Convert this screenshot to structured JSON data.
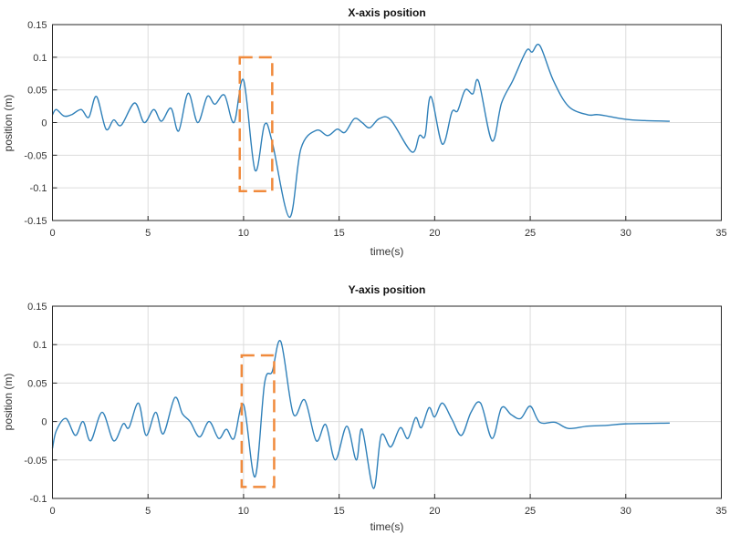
{
  "colors": {
    "line": "#2f80b9",
    "highlight": "#f08a3c",
    "grid": "#dcdcdc",
    "axis": "#262626"
  },
  "chart_data": [
    {
      "type": "line",
      "title": "X-axis position",
      "xlabel": "time(s)",
      "ylabel": "position (m)",
      "xlim": [
        0,
        35
      ],
      "ylim": [
        -0.15,
        0.15
      ],
      "xticks": [
        "0",
        "5",
        "10",
        "15",
        "20",
        "25",
        "30",
        "35"
      ],
      "yticks": [
        "-0.15",
        "-0.1",
        "-0.05",
        "0",
        "0.05",
        "0.1",
        "0.15"
      ],
      "grid": true,
      "highlight_box": {
        "x": [
          9.8,
          11.5
        ],
        "y": [
          -0.105,
          0.1
        ],
        "style": "dashed"
      },
      "x": [
        0,
        0.2,
        0.6,
        1,
        1.5,
        1.9,
        2.3,
        2.8,
        3.2,
        3.6,
        4.3,
        4.8,
        5.3,
        5.7,
        6.2,
        6.6,
        7.1,
        7.6,
        8.1,
        8.5,
        9,
        9.5,
        10,
        10.6,
        11.1,
        11.5,
        12.4,
        13,
        13.8,
        14.4,
        14.9,
        15.3,
        15.8,
        16.2,
        16.6,
        17.1,
        17.7,
        18.8,
        19.2,
        19.5,
        19.8,
        20.4,
        20.9,
        21.2,
        21.6,
        22,
        22.3,
        23,
        23.5,
        24.1,
        24.8,
        25.1,
        25.5,
        26.2,
        27,
        28,
        28.6,
        30,
        31,
        32.3
      ],
      "y": [
        0.012,
        0.02,
        0.01,
        0.012,
        0.02,
        0.008,
        0.04,
        -0.01,
        0.004,
        -0.004,
        0.03,
        0.0,
        0.02,
        0.002,
        0.022,
        -0.013,
        0.045,
        0.0,
        0.04,
        0.028,
        0.042,
        0.0,
        0.065,
        -0.073,
        -0.003,
        -0.03,
        -0.145,
        -0.04,
        -0.012,
        -0.02,
        -0.01,
        -0.015,
        0.006,
        0.0,
        -0.008,
        0.006,
        0.004,
        -0.045,
        -0.02,
        -0.02,
        0.04,
        -0.033,
        0.016,
        0.018,
        0.05,
        0.044,
        0.063,
        -0.028,
        0.03,
        0.065,
        0.11,
        0.108,
        0.118,
        0.065,
        0.025,
        0.012,
        0.012,
        0.005,
        0.003,
        0.002
      ]
    },
    {
      "type": "line",
      "title": "Y-axis position",
      "xlabel": "time(s)",
      "ylabel": "position (m)",
      "xlim": [
        0,
        35
      ],
      "ylim": [
        -0.1,
        0.15
      ],
      "xticks": [
        "0",
        "5",
        "10",
        "15",
        "20",
        "25",
        "30",
        "35"
      ],
      "yticks": [
        "-0.1",
        "-0.05",
        "0",
        "0.05",
        "0.1",
        "0.15"
      ],
      "grid": true,
      "highlight_box": {
        "x": [
          9.9,
          11.6
        ],
        "y": [
          -0.085,
          0.086
        ],
        "style": "dashed"
      },
      "x": [
        0,
        0.2,
        0.7,
        1.2,
        1.6,
        2.0,
        2.6,
        3.2,
        3.7,
        4.0,
        4.5,
        4.9,
        5.4,
        5.8,
        6.4,
        6.8,
        7.2,
        7.7,
        8.2,
        8.7,
        9.1,
        9.5,
        10,
        10.6,
        11.1,
        11.5,
        11.95,
        12.6,
        13.2,
        13.8,
        14.3,
        14.8,
        15.4,
        15.9,
        16.2,
        16.8,
        17.2,
        17.7,
        18.2,
        18.6,
        19.0,
        19.3,
        19.7,
        20.0,
        20.4,
        20.9,
        21.4,
        21.9,
        22.4,
        23.0,
        23.5,
        24.0,
        24.5,
        25.0,
        25.5,
        26.3,
        27.0,
        28.0,
        29,
        30,
        32.3
      ],
      "y": [
        -0.035,
        -0.012,
        0.004,
        -0.018,
        0.0,
        -0.025,
        0.012,
        -0.025,
        -0.003,
        -0.008,
        0.024,
        -0.018,
        0.012,
        -0.016,
        0.031,
        0.01,
        0.0,
        -0.02,
        0.0,
        -0.022,
        -0.01,
        -0.022,
        0.022,
        -0.072,
        0.05,
        0.065,
        0.104,
        0.01,
        0.028,
        -0.025,
        -0.004,
        -0.05,
        -0.006,
        -0.05,
        -0.01,
        -0.087,
        -0.018,
        -0.033,
        -0.008,
        -0.022,
        0.005,
        -0.008,
        0.018,
        0.006,
        0.024,
        0.003,
        -0.018,
        0.012,
        0.024,
        -0.022,
        0.018,
        0.009,
        0.004,
        0.02,
        -0.001,
        -0.001,
        -0.009,
        -0.006,
        -0.005,
        -0.003,
        -0.002
      ]
    }
  ]
}
